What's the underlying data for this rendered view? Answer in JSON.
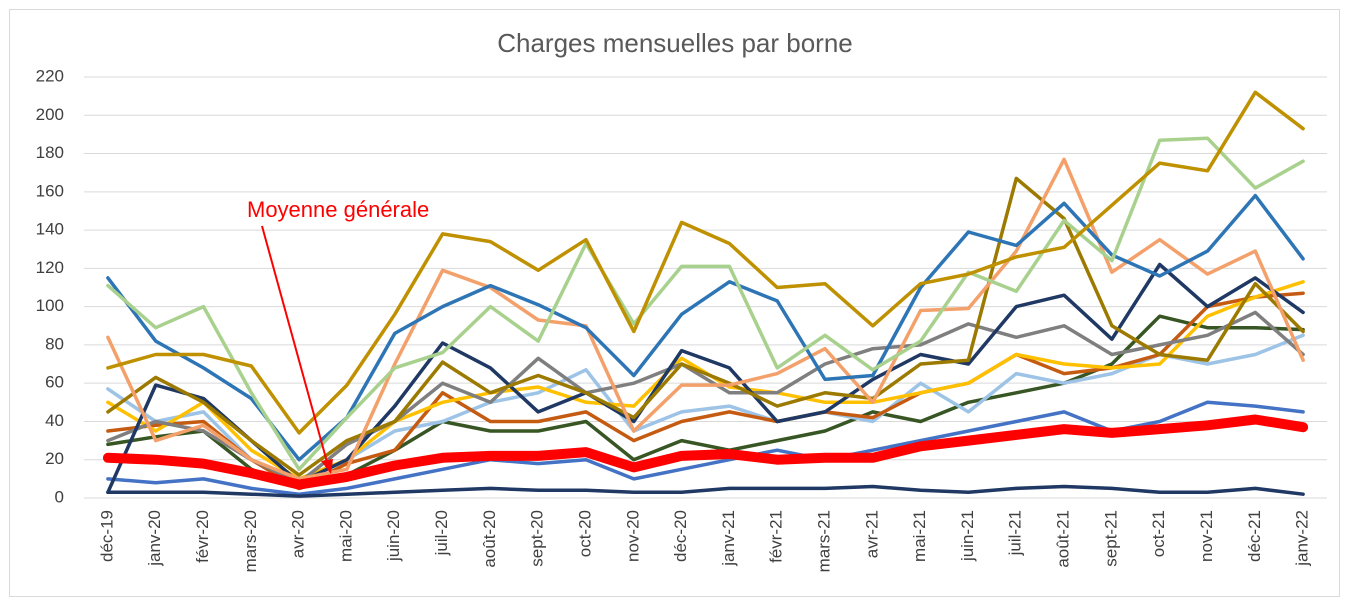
{
  "chart_data": {
    "type": "line",
    "title": "Charges mensuelles par borne",
    "annotation": "Moyenne générale",
    "categories": [
      "déc-19",
      "janv-20",
      "févr-20",
      "mars-20",
      "avr-20",
      "mai-20",
      "juin-20",
      "juil-20",
      "août-20",
      "sept-20",
      "oct-20",
      "nov-20",
      "déc-20",
      "janv-21",
      "févr-21",
      "mars-21",
      "avr-21",
      "mai-21",
      "juin-21",
      "juil-21",
      "août-21",
      "sept-21",
      "oct-21",
      "nov-21",
      "déc-21",
      "janv-22"
    ],
    "ylim": [
      0,
      220
    ],
    "yticks": [
      0,
      20,
      40,
      60,
      80,
      100,
      120,
      140,
      160,
      180,
      200,
      220
    ],
    "grid": true,
    "series": [
      {
        "color": "#4472c4",
        "values": [
          10,
          8,
          10,
          5,
          2,
          5,
          10,
          15,
          20,
          18,
          20,
          10,
          15,
          20,
          25,
          20,
          25,
          30,
          35,
          40,
          45,
          35,
          40,
          50,
          48,
          45
        ]
      },
      {
        "color": "#203864",
        "values": [
          3,
          3,
          3,
          2,
          1,
          2,
          3,
          4,
          5,
          4,
          4,
          3,
          3,
          5,
          5,
          5,
          6,
          4,
          3,
          5,
          6,
          5,
          3,
          3,
          5,
          2
        ]
      },
      {
        "color": "#375623",
        "values": [
          28,
          32,
          35,
          15,
          5,
          12,
          25,
          40,
          35,
          35,
          40,
          20,
          30,
          25,
          30,
          35,
          45,
          40,
          50,
          55,
          60,
          70,
          95,
          89,
          89,
          88
        ]
      },
      {
        "color": "#9dc3e6",
        "values": [
          57,
          40,
          45,
          20,
          8,
          20,
          35,
          40,
          50,
          55,
          67,
          35,
          45,
          48,
          40,
          45,
          40,
          60,
          45,
          65,
          60,
          65,
          75,
          70,
          75,
          85
        ]
      },
      {
        "color": "#c55a11",
        "values": [
          35,
          38,
          40,
          20,
          5,
          18,
          25,
          55,
          40,
          40,
          45,
          30,
          40,
          45,
          40,
          45,
          42,
          55,
          60,
          75,
          65,
          68,
          75,
          100,
          105,
          107
        ]
      },
      {
        "color": "#ffc000",
        "values": [
          50,
          35,
          50,
          25,
          10,
          20,
          40,
          50,
          55,
          58,
          50,
          48,
          73,
          58,
          55,
          50,
          50,
          55,
          60,
          75,
          70,
          68,
          70,
          95,
          105,
          113
        ]
      },
      {
        "color": "#7f7f7f",
        "values": [
          30,
          40,
          35,
          20,
          8,
          28,
          40,
          60,
          50,
          73,
          55,
          60,
          70,
          55,
          55,
          70,
          78,
          80,
          91,
          84,
          90,
          75,
          80,
          85,
          97,
          75
        ]
      },
      {
        "color": "#1f3864",
        "values": [
          3,
          59,
          52,
          30,
          8,
          20,
          48,
          81,
          68,
          45,
          55,
          40,
          77,
          68,
          40,
          45,
          62,
          75,
          70,
          100,
          106,
          83,
          122,
          100,
          115,
          97
        ]
      },
      {
        "color": "#9c7a00",
        "values": [
          45,
          63,
          50,
          30,
          12,
          30,
          40,
          71,
          55,
          64,
          55,
          42,
          70,
          60,
          48,
          55,
          52,
          70,
          72,
          167,
          146,
          90,
          75,
          72,
          112,
          87
        ]
      },
      {
        "color": "#f4a06a",
        "values": [
          84,
          30,
          38,
          20,
          10,
          15,
          70,
          119,
          110,
          93,
          90,
          35,
          59,
          59,
          65,
          78,
          50,
          98,
          99,
          129,
          177,
          118,
          135,
          117,
          129,
          72
        ]
      },
      {
        "color": "#2e75b6",
        "values": [
          115,
          82,
          68,
          52,
          20,
          42,
          86,
          100,
          111,
          101,
          89,
          64,
          96,
          113,
          103,
          62,
          64,
          110,
          139,
          132,
          154,
          127,
          116,
          129,
          158,
          125
        ]
      },
      {
        "color": "#a9d18e",
        "values": [
          111,
          89,
          100,
          55,
          15,
          42,
          68,
          76,
          100,
          82,
          133,
          91,
          121,
          121,
          68,
          85,
          67,
          82,
          118,
          108,
          145,
          124,
          187,
          188,
          162,
          176
        ]
      },
      {
        "color": "#bf9000",
        "values": [
          68,
          75,
          75,
          69,
          34,
          59,
          96,
          138,
          134,
          119,
          135,
          87,
          144,
          133,
          110,
          112,
          90,
          112,
          117,
          126,
          131,
          153,
          175,
          171,
          212,
          193
        ]
      },
      {
        "color": "#ff0000",
        "line_width": 10,
        "values": [
          21,
          20,
          18,
          13,
          7,
          11,
          17,
          21,
          22,
          22,
          24,
          16,
          22,
          23,
          20,
          21,
          21,
          27,
          30,
          33,
          36,
          34,
          36,
          38,
          41,
          37
        ]
      }
    ]
  }
}
